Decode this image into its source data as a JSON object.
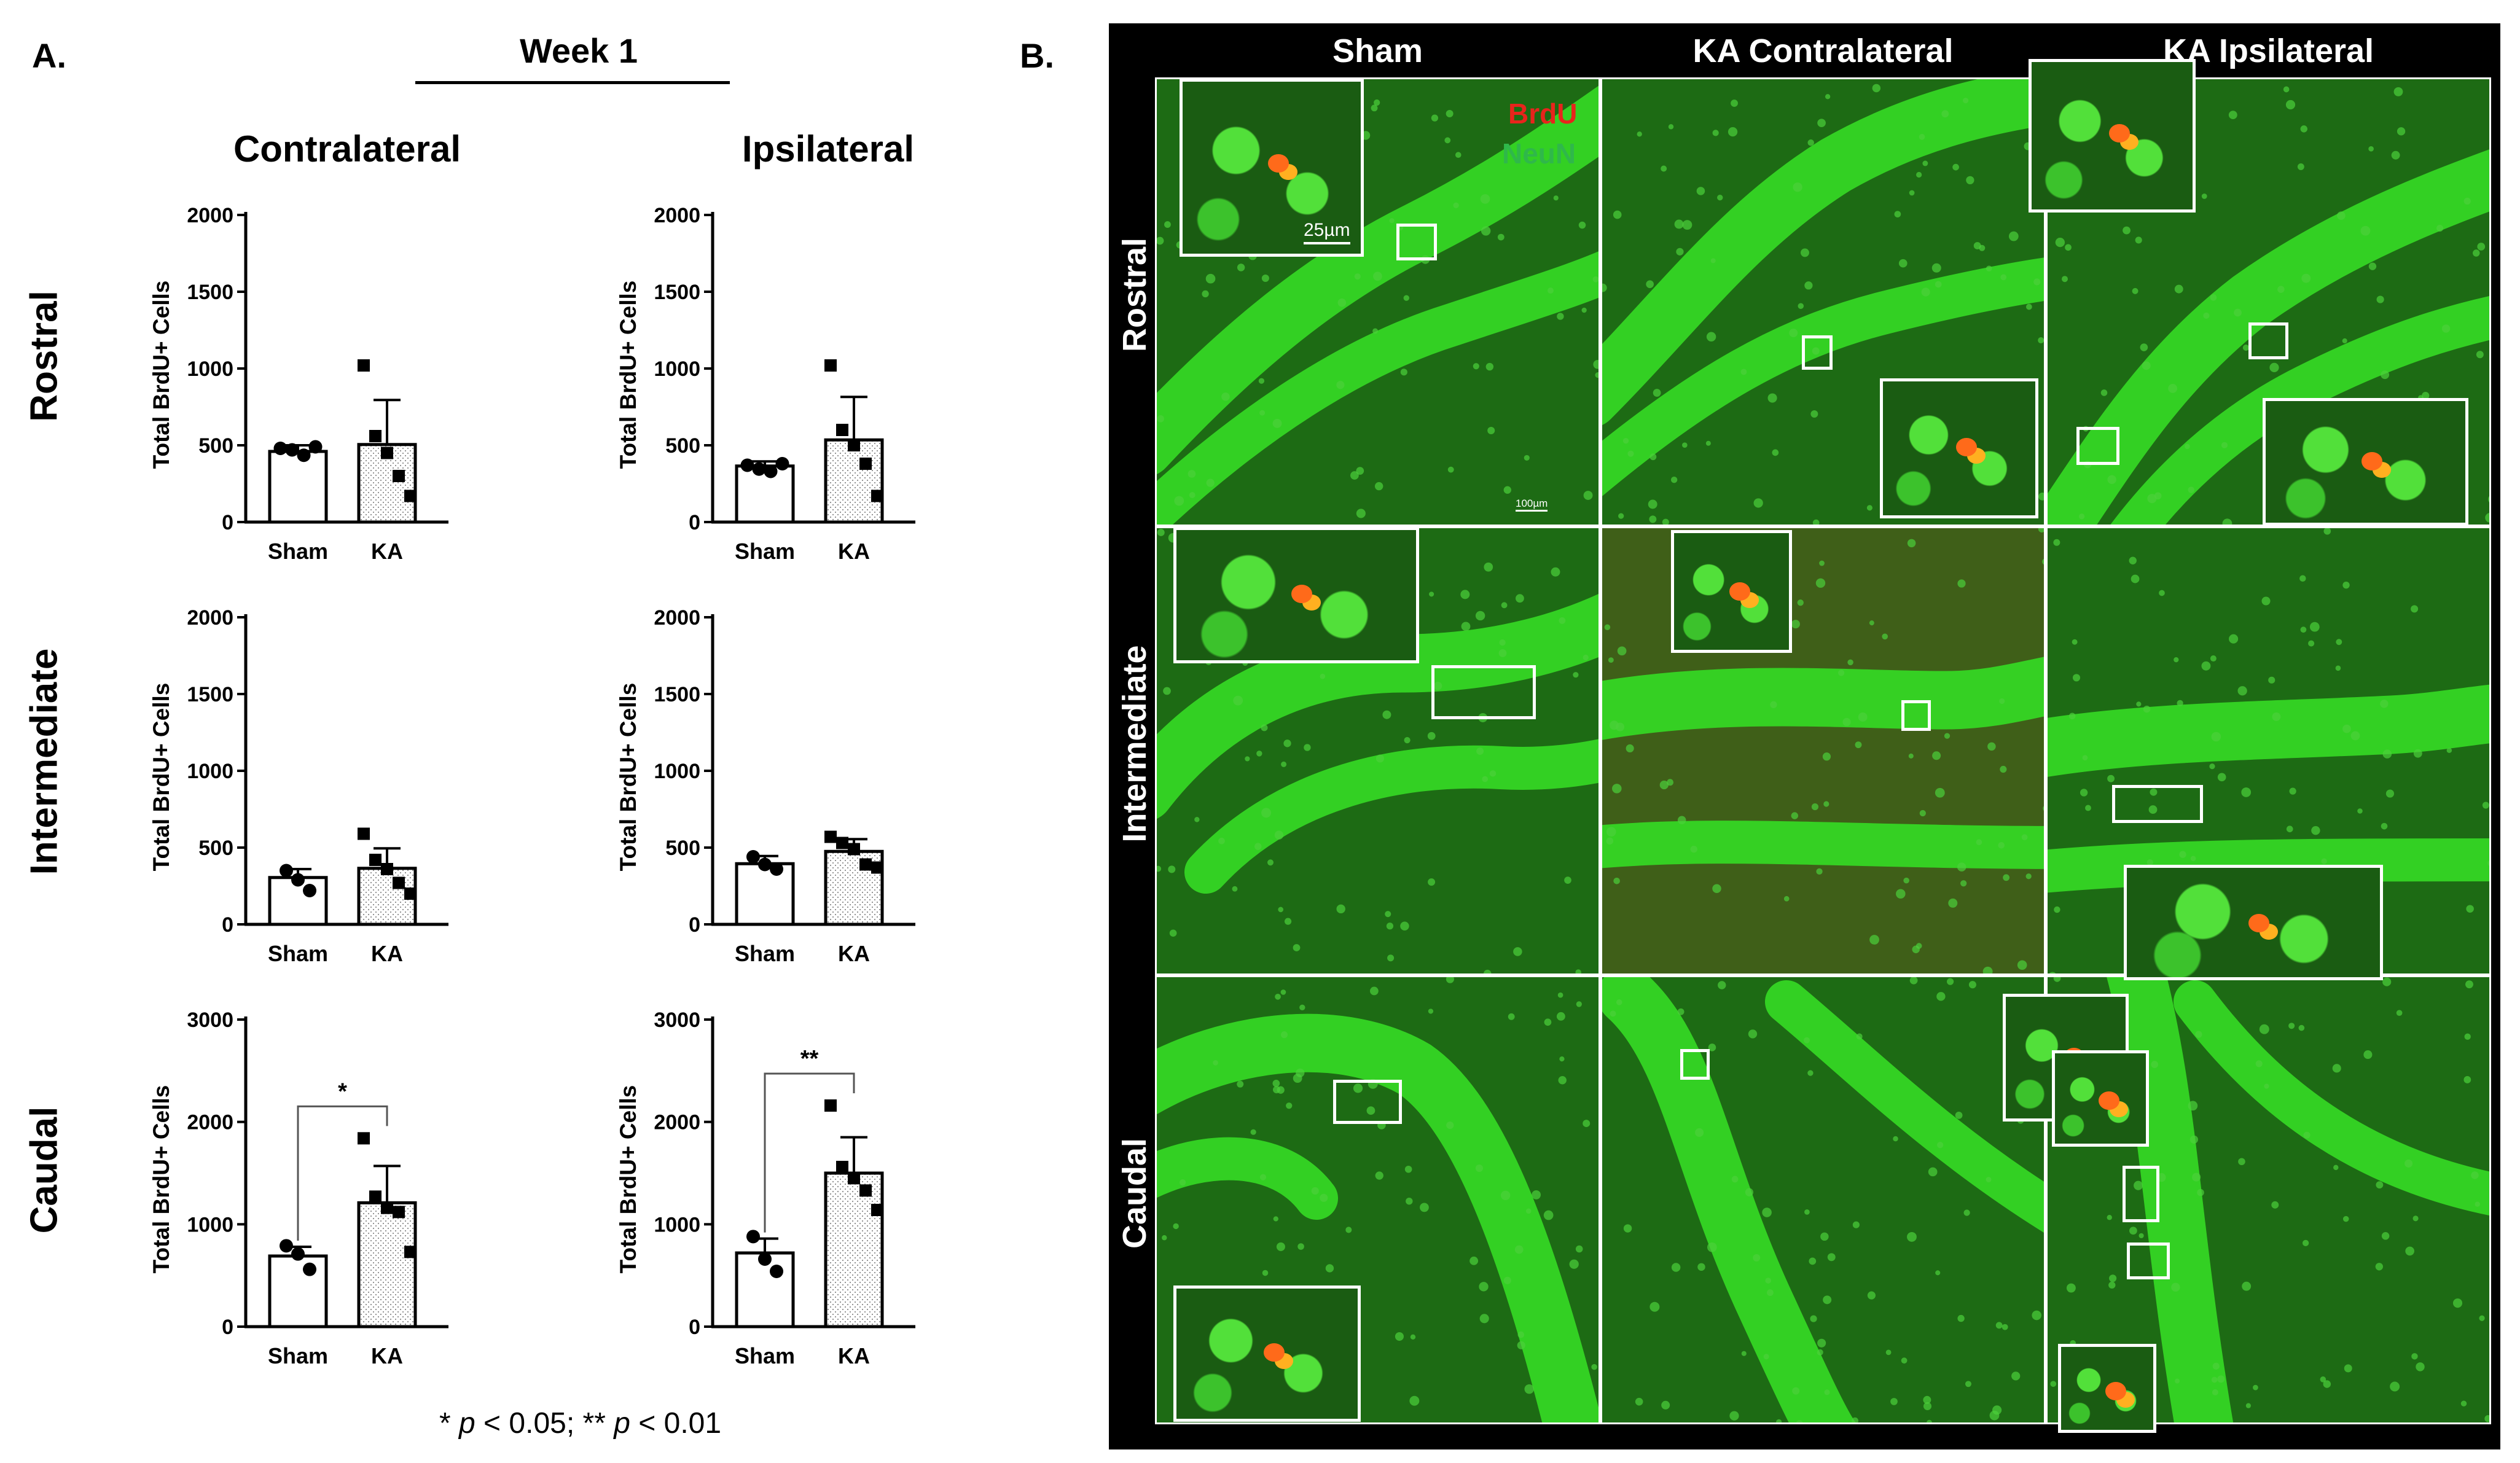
{
  "panel_a": {
    "letter": "A.",
    "week_title": "Week 1",
    "columns": [
      "Contralateral",
      "Ipsilateral"
    ],
    "rows": [
      "Rostral",
      "Intermediate",
      "Caudal"
    ],
    "footnote": {
      "sig1_sym": "* ",
      "sig1_var": "p",
      "sig1_rest": " < 0.05; ** ",
      "sig2_var": "p",
      "sig2_rest": " < 0.01"
    }
  },
  "chart_data": [
    {
      "type": "bar",
      "region": "Rostral",
      "side": "Contralateral",
      "categories": [
        "Sham",
        "KA"
      ],
      "values": [
        460,
        505
      ],
      "error": [
        40,
        290
      ],
      "points": [
        [
          480,
          470,
          435,
          490
        ],
        [
          1020,
          560,
          450,
          300,
          170
        ]
      ],
      "ylabel": "Total BrdU+ Cells",
      "ylim": [
        0,
        2000
      ],
      "yticks": [
        0,
        500,
        1000,
        1500,
        2000
      ],
      "significance": ""
    },
    {
      "type": "bar",
      "region": "Rostral",
      "side": "Ipsilateral",
      "categories": [
        "Sham",
        "KA"
      ],
      "values": [
        365,
        535
      ],
      "error": [
        30,
        280
      ],
      "points": [
        [
          370,
          345,
          330,
          380
        ],
        [
          1020,
          600,
          500,
          380,
          170
        ]
      ],
      "ylabel": "Total BrdU+ Cells",
      "ylim": [
        0,
        2000
      ],
      "yticks": [
        0,
        500,
        1000,
        1500,
        2000
      ],
      "significance": ""
    },
    {
      "type": "bar",
      "region": "Intermediate",
      "side": "Contralateral",
      "categories": [
        "Sham",
        "KA"
      ],
      "values": [
        305,
        365
      ],
      "error": [
        55,
        130
      ],
      "points": [
        [
          350,
          290,
          220
        ],
        [
          590,
          420,
          360,
          270,
          200
        ]
      ],
      "ylabel": "Total BrdU+ Cells",
      "ylim": [
        0,
        2000
      ],
      "yticks": [
        0,
        500,
        1000,
        1500,
        2000
      ],
      "significance": ""
    },
    {
      "type": "bar",
      "region": "Intermediate",
      "side": "Ipsilateral",
      "categories": [
        "Sham",
        "KA"
      ],
      "values": [
        395,
        475
      ],
      "error": [
        50,
        80
      ],
      "points": [
        [
          440,
          390,
          360
        ],
        [
          570,
          530,
          490,
          390,
          370
        ]
      ],
      "ylabel": "Total BrdU+ Cells",
      "ylim": [
        0,
        2000
      ],
      "yticks": [
        0,
        500,
        1000,
        1500,
        2000
      ],
      "significance": ""
    },
    {
      "type": "bar",
      "region": "Caudal",
      "side": "Contralateral",
      "categories": [
        "Sham",
        "KA"
      ],
      "values": [
        690,
        1210
      ],
      "error": [
        90,
        360
      ],
      "points": [
        [
          790,
          710,
          560
        ],
        [
          1840,
          1270,
          1160,
          1120,
          730
        ]
      ],
      "ylabel": "Total BrdU+ Cells",
      "ylim": [
        0,
        3000
      ],
      "yticks": [
        0,
        1000,
        2000,
        3000
      ],
      "significance": "*"
    },
    {
      "type": "bar",
      "region": "Caudal",
      "side": "Ipsilateral",
      "categories": [
        "Sham",
        "KA"
      ],
      "values": [
        720,
        1500
      ],
      "error": [
        140,
        350
      ],
      "points": [
        [
          880,
          660,
          540
        ],
        [
          2160,
          1560,
          1450,
          1330,
          1140
        ]
      ],
      "ylabel": "Total BrdU+ Cells",
      "ylim": [
        0,
        3000
      ],
      "yticks": [
        0,
        1000,
        2000,
        3000
      ],
      "significance": "**"
    }
  ],
  "panel_b": {
    "letter": "B.",
    "columns": [
      "Sham",
      "KA Contralateral",
      "KA Ipsilateral"
    ],
    "rows": [
      "Rostral",
      "Intermediate",
      "Caudal"
    ],
    "legend": {
      "brdu": "BrdU",
      "neun": "NeuN",
      "brdu_color": "#e8241c",
      "neun_color": "#2fb84a"
    },
    "inset_scale": "25µm",
    "tile_scale": "100µm",
    "colors": {
      "frame": "#000000",
      "tissue": "#1d6b14",
      "cells": "#35d624",
      "label_cells": "#ff6a1a"
    }
  }
}
